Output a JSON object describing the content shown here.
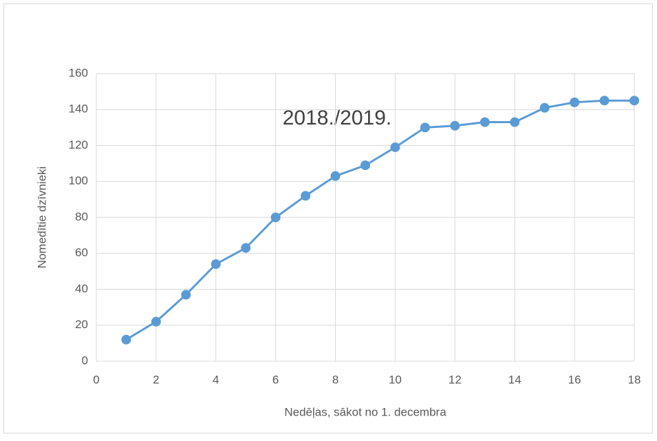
{
  "chart_data": {
    "type": "line",
    "annotation": "2018./2019.",
    "x_label": "Nedēļas, sākot no 1. decembra",
    "y_label": "Nomedītie dzīvnieki",
    "x": [
      1,
      2,
      3,
      4,
      5,
      6,
      7,
      8,
      9,
      10,
      11,
      12,
      13,
      14,
      15,
      16,
      17,
      18
    ],
    "values": [
      12,
      22,
      37,
      54,
      63,
      80,
      92,
      103,
      109,
      119,
      130,
      131,
      133,
      133,
      141,
      144,
      145,
      145
    ],
    "color": "#5b9bd5",
    "xlim": [
      0,
      18
    ],
    "xticks": [
      0,
      2,
      4,
      6,
      8,
      10,
      12,
      14,
      16,
      18
    ],
    "ylim": [
      0,
      160
    ],
    "yticks": [
      0,
      20,
      40,
      60,
      80,
      100,
      120,
      140,
      160
    ],
    "grid": true
  }
}
